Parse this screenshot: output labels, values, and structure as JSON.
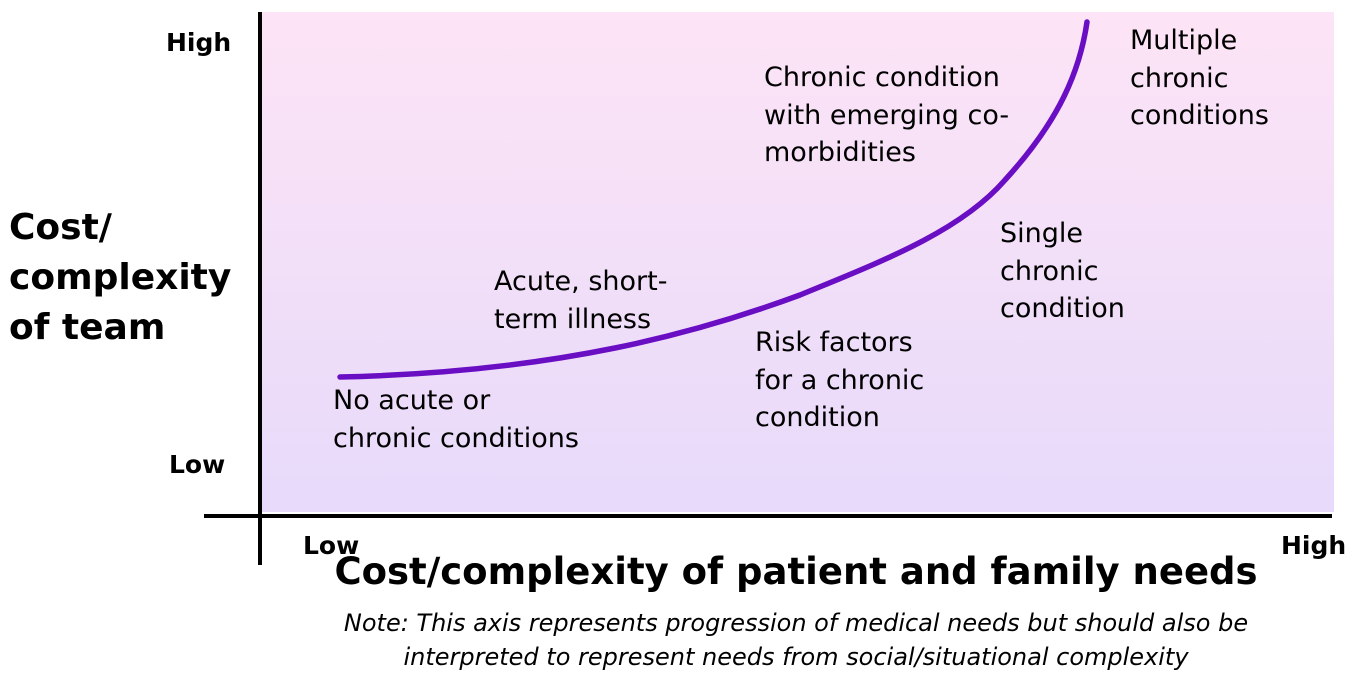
{
  "y_axis": {
    "title_lines": [
      "Cost/",
      "complexity",
      "of team"
    ],
    "high_label": "High",
    "low_label": "Low"
  },
  "x_axis": {
    "title": "Cost/complexity of patient and family needs",
    "low_label": "Low",
    "high_label": "High",
    "note_lines": [
      "Note: This axis represents progression of medical needs but should also be",
      "interpreted to represent needs from social/situational complexity"
    ]
  },
  "stages": [
    {
      "lines": [
        "No acute or",
        "chronic conditions"
      ]
    },
    {
      "lines": [
        "Acute, short-",
        "term illness"
      ]
    },
    {
      "lines": [
        "Risk factors",
        "for a chronic",
        "condition"
      ]
    },
    {
      "lines": [
        "Single",
        "chronic",
        "condition"
      ]
    },
    {
      "lines": [
        "Chronic condition",
        "with emerging co-",
        "morbidities"
      ]
    },
    {
      "lines": [
        "Multiple",
        "chronic",
        "conditions"
      ]
    }
  ],
  "colors": {
    "curve": "#6a0ec4",
    "background_top": "#fde4f6",
    "background_bottom": "#e7dafa",
    "axis": "#000000"
  }
}
